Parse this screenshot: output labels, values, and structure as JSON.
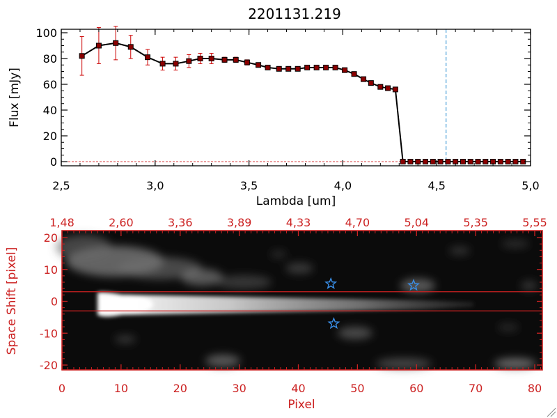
{
  "title": "2201131.219",
  "colors": {
    "line": "#000000",
    "marker": "#8b0000",
    "errorbar": "#cc0000",
    "axis_red": "#cc2222",
    "cutoff": "#4a9fd8",
    "star": "#3a8fe8",
    "background": "#ffffff"
  },
  "chart_data": [
    {
      "type": "line",
      "title": "2201131.219",
      "xlabel": "Lambda [um]",
      "ylabel": "Flux [mJy]",
      "xlim": [
        2.5,
        5.0
      ],
      "ylim": [
        0,
        100
      ],
      "x_ticks": [
        "2.5",
        "3.0",
        "3.5",
        "4.0",
        "4.5",
        "5.0"
      ],
      "y_ticks": [
        "0",
        "20",
        "40",
        "60",
        "80",
        "100"
      ],
      "cutoff_x": 4.55,
      "series": [
        {
          "x": [
            2.61,
            2.7,
            2.79,
            2.87,
            2.96,
            3.04,
            3.11,
            3.18,
            3.24,
            3.3,
            3.37,
            3.43,
            3.49,
            3.55,
            3.6,
            3.66,
            3.71,
            3.76,
            3.81,
            3.86,
            3.91,
            3.96,
            4.01,
            4.06,
            4.11,
            4.15,
            4.2,
            4.24,
            4.28,
            4.32,
            4.36,
            4.4,
            4.44,
            4.48,
            4.52,
            4.56,
            4.6,
            4.64,
            4.68,
            4.72,
            4.76,
            4.8,
            4.84,
            4.88,
            4.92,
            4.96
          ],
          "y": [
            82,
            90,
            92,
            89,
            81,
            76,
            76,
            78,
            80,
            80,
            79,
            79,
            77,
            75,
            73,
            72,
            72,
            72,
            73,
            73,
            73,
            73,
            71,
            68,
            64,
            61,
            58,
            57,
            56,
            0,
            0,
            0,
            0,
            0,
            0,
            0,
            0,
            0,
            0,
            0,
            0,
            0,
            0,
            0,
            0,
            0
          ],
          "err": [
            15,
            14,
            13,
            9,
            6,
            5,
            5,
            5,
            4,
            4,
            2,
            2,
            2,
            1,
            1,
            1,
            1,
            1,
            1,
            1,
            1,
            1,
            1,
            1,
            1,
            1,
            1,
            1,
            1,
            0,
            0,
            0,
            0,
            0,
            0,
            0,
            0,
            0,
            0,
            0,
            0,
            0,
            0,
            0,
            0,
            0
          ]
        }
      ]
    },
    {
      "type": "heatmap",
      "xlabel": "Pixel",
      "ylabel": "Space Shift [pixel]",
      "xlim": [
        0,
        81
      ],
      "ylim": [
        -22,
        22
      ],
      "x_ticks": [
        "0",
        "10",
        "20",
        "30",
        "40",
        "50",
        "60",
        "70",
        "80"
      ],
      "y_ticks": [
        "-20",
        "-10",
        "0",
        "10",
        "20"
      ],
      "top_ticks": [
        "1.48",
        "2.60",
        "3.36",
        "3.89",
        "4.33",
        "4.70",
        "5.04",
        "5.35",
        "5.55"
      ],
      "aperture_lines": [
        3,
        -3
      ],
      "stars": [
        {
          "x": 45.5,
          "y": 5.5
        },
        {
          "x": 59.5,
          "y": 5
        },
        {
          "x": 46,
          "y": -7
        }
      ]
    }
  ]
}
